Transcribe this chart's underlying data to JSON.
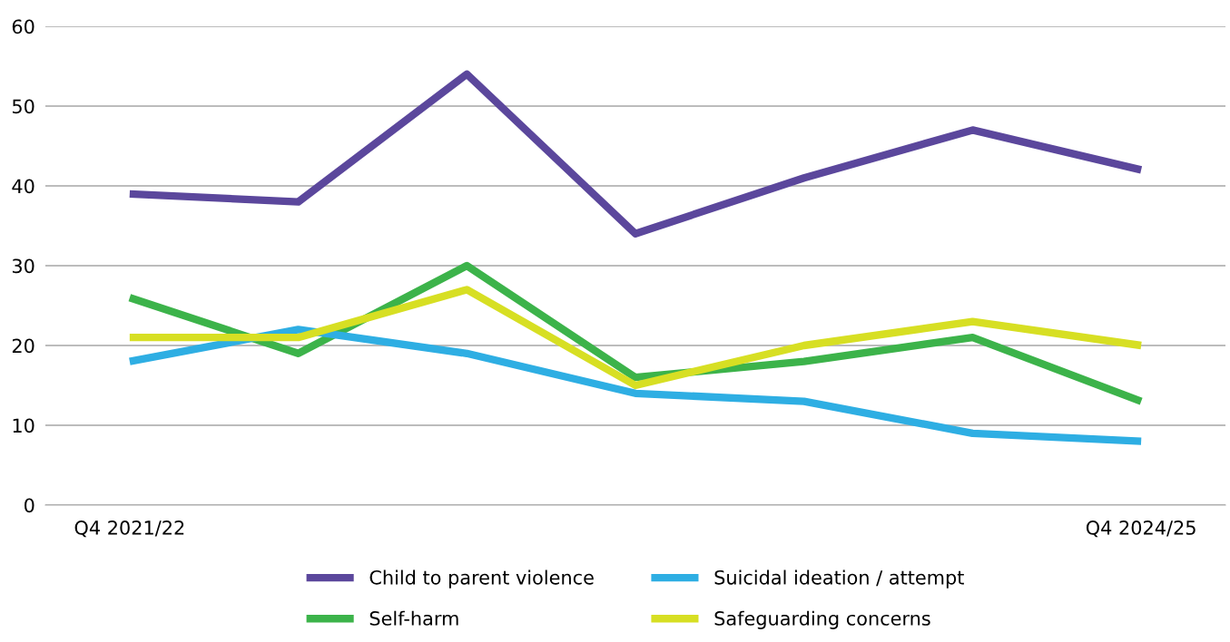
{
  "chart_data": {
    "type": "line",
    "categories": [
      "Q4 2021/22",
      null,
      null,
      null,
      null,
      null,
      "Q4 2024/25"
    ],
    "series": [
      {
        "name": "Child to parent violence",
        "color": "#5b479c",
        "values": [
          39,
          38,
          54,
          34,
          41,
          47,
          42
        ]
      },
      {
        "name": "Self-harm",
        "color": "#3cb34a",
        "values": [
          26,
          19,
          30,
          16,
          18,
          21,
          13
        ]
      },
      {
        "name": "Suicidal ideation / attempt",
        "color": "#2eaee3",
        "values": [
          18,
          22,
          19,
          14,
          13,
          9,
          8
        ]
      },
      {
        "name": "Safeguarding concerns",
        "color": "#d7df23",
        "values": [
          21,
          21,
          27,
          15,
          20,
          23,
          20
        ]
      }
    ],
    "ylim": [
      0,
      60
    ],
    "yticks": [
      0,
      10,
      20,
      30,
      40,
      50,
      60
    ],
    "grid": "y",
    "legend": "bottom",
    "marker": "none",
    "line_style": "solid"
  }
}
